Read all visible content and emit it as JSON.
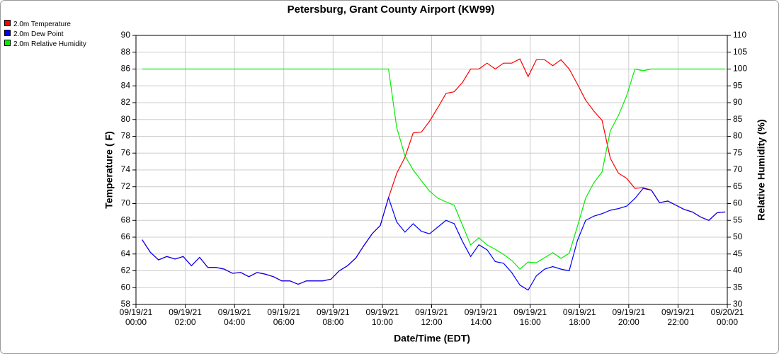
{
  "chart_data": {
    "type": "line",
    "title": "Petersburg, Grant County Airport (KW99)",
    "x_label": "Date/Time (EDT)",
    "y_label": "Temperature ( F)",
    "y2_label": "Relative Humidity (%)",
    "xlim": [
      "09/19/21 00:00",
      "09/20/21 00:00"
    ],
    "xticks": [
      "09/19/21 00:00",
      "09/19/21 02:00",
      "09/19/21 04:00",
      "09/19/21 06:00",
      "09/19/21 08:00",
      "09/19/21 10:00",
      "09/19/21 12:00",
      "09/19/21 14:00",
      "09/19/21 16:00",
      "09/19/21 18:00",
      "09/19/21 20:00",
      "09/19/21 22:00",
      "09/20/21 00:00"
    ],
    "ylim": [
      58,
      90
    ],
    "yticks": [
      58,
      60,
      62,
      64,
      66,
      68,
      70,
      72,
      74,
      76,
      78,
      80,
      82,
      84,
      86,
      88,
      90
    ],
    "y2lim": [
      30,
      110
    ],
    "y2ticks": [
      30,
      35,
      40,
      45,
      50,
      55,
      60,
      65,
      70,
      75,
      80,
      85,
      90,
      95,
      100,
      105,
      110
    ],
    "grid": true,
    "legend": "top-left",
    "x": [
      "09/19/21 00:15",
      "09/19/21 00:35",
      "09/19/21 00:55",
      "09/19/21 01:15",
      "09/19/21 01:35",
      "09/19/21 01:55",
      "09/19/21 02:15",
      "09/19/21 02:35",
      "09/19/21 02:55",
      "09/19/21 03:15",
      "09/19/21 03:35",
      "09/19/21 03:55",
      "09/19/21 04:15",
      "09/19/21 04:35",
      "09/19/21 04:55",
      "09/19/21 05:15",
      "09/19/21 05:35",
      "09/19/21 05:55",
      "09/19/21 06:15",
      "09/19/21 06:35",
      "09/19/21 06:55",
      "09/19/21 07:15",
      "09/19/21 07:35",
      "09/19/21 07:55",
      "09/19/21 08:15",
      "09/19/21 08:35",
      "09/19/21 08:55",
      "09/19/21 09:15",
      "09/19/21 09:35",
      "09/19/21 09:55",
      "09/19/21 10:15",
      "09/19/21 10:35",
      "09/19/21 10:55",
      "09/19/21 11:15",
      "09/19/21 11:35",
      "09/19/21 11:55",
      "09/19/21 12:15",
      "09/19/21 12:35",
      "09/19/21 12:55",
      "09/19/21 13:15",
      "09/19/21 13:35",
      "09/19/21 13:55",
      "09/19/21 14:15",
      "09/19/21 14:35",
      "09/19/21 14:55",
      "09/19/21 15:15",
      "09/19/21 15:35",
      "09/19/21 15:55",
      "09/19/21 16:15",
      "09/19/21 16:35",
      "09/19/21 16:55",
      "09/19/21 17:15",
      "09/19/21 17:35",
      "09/19/21 17:55",
      "09/19/21 18:15",
      "09/19/21 18:35",
      "09/19/21 18:55",
      "09/19/21 19:15",
      "09/19/21 19:35",
      "09/19/21 19:55",
      "09/19/21 20:15",
      "09/19/21 20:35",
      "09/19/21 20:55",
      "09/19/21 21:15",
      "09/19/21 21:35",
      "09/19/21 21:55",
      "09/19/21 22:15",
      "09/19/21 22:35",
      "09/19/21 22:55",
      "09/19/21 23:15",
      "09/19/21 23:35",
      "09/19/21 23:55"
    ],
    "series": [
      {
        "name": "2.0m Temperature",
        "color": "#ff0000",
        "values": [
          65.7,
          64.2,
          63.3,
          63.7,
          63.4,
          63.7,
          62.6,
          63.6,
          62.4,
          62.4,
          62.2,
          61.7,
          61.8,
          61.3,
          61.8,
          61.6,
          61.3,
          60.8,
          60.8,
          60.4,
          60.8,
          60.8,
          60.8,
          61.0,
          62.0,
          62.6,
          63.5,
          65.0,
          66.4,
          67.4,
          70.7,
          73.6,
          75.5,
          78.4,
          78.5,
          79.8,
          81.4,
          83.1,
          83.3,
          84.4,
          86.0,
          86.0,
          86.7,
          86.0,
          86.7,
          86.7,
          87.2,
          85.1,
          87.1,
          87.1,
          86.4,
          87.1,
          86.0,
          84.2,
          82.3,
          81.0,
          79.9,
          75.4,
          73.6,
          73.0,
          71.8,
          71.9,
          71.6,
          70.1,
          70.3,
          69.8,
          69.3,
          69.0,
          68.4,
          68.0,
          68.9,
          69.0
        ]
      },
      {
        "name": "2.0m Dew Point",
        "color": "#0000ff",
        "values": [
          65.7,
          64.2,
          63.3,
          63.7,
          63.4,
          63.7,
          62.6,
          63.6,
          62.4,
          62.4,
          62.2,
          61.7,
          61.8,
          61.3,
          61.8,
          61.6,
          61.3,
          60.8,
          60.8,
          60.4,
          60.8,
          60.8,
          60.8,
          61.0,
          62.0,
          62.6,
          63.5,
          65.0,
          66.4,
          67.4,
          70.7,
          67.8,
          66.6,
          67.6,
          66.7,
          66.4,
          67.2,
          68.0,
          67.6,
          65.5,
          63.7,
          65.1,
          64.5,
          63.1,
          62.9,
          61.8,
          60.3,
          59.7,
          61.4,
          62.2,
          62.5,
          62.2,
          62.0,
          65.6,
          68.0,
          68.5,
          68.8,
          69.2,
          69.4,
          69.7,
          70.6,
          71.8,
          71.6,
          70.1,
          70.3,
          69.8,
          69.3,
          69.0,
          68.4,
          68.0,
          68.9,
          69.0
        ]
      },
      {
        "name": "2.0m Relative Humidity",
        "color": "#00ee00",
        "axis": "y2",
        "values": [
          100,
          100,
          100,
          100,
          100,
          100,
          100,
          100,
          100,
          100,
          100,
          100,
          100,
          100,
          100,
          100,
          100,
          100,
          100,
          100,
          100,
          100,
          100,
          100,
          100,
          100,
          100,
          100,
          100,
          100,
          100,
          82.6,
          74.2,
          70,
          66.8,
          63.7,
          61.6,
          60.5,
          59.5,
          53.6,
          47.7,
          49.8,
          47.7,
          46.4,
          44.9,
          43.1,
          40.5,
          42.6,
          42.4,
          43.9,
          45.4,
          43.7,
          45.2,
          53.2,
          61.6,
          66.2,
          69.4,
          81.6,
          86.2,
          92.1,
          100,
          99.5,
          100,
          100,
          100,
          100,
          100,
          100,
          100,
          100,
          100,
          100
        ]
      }
    ]
  }
}
